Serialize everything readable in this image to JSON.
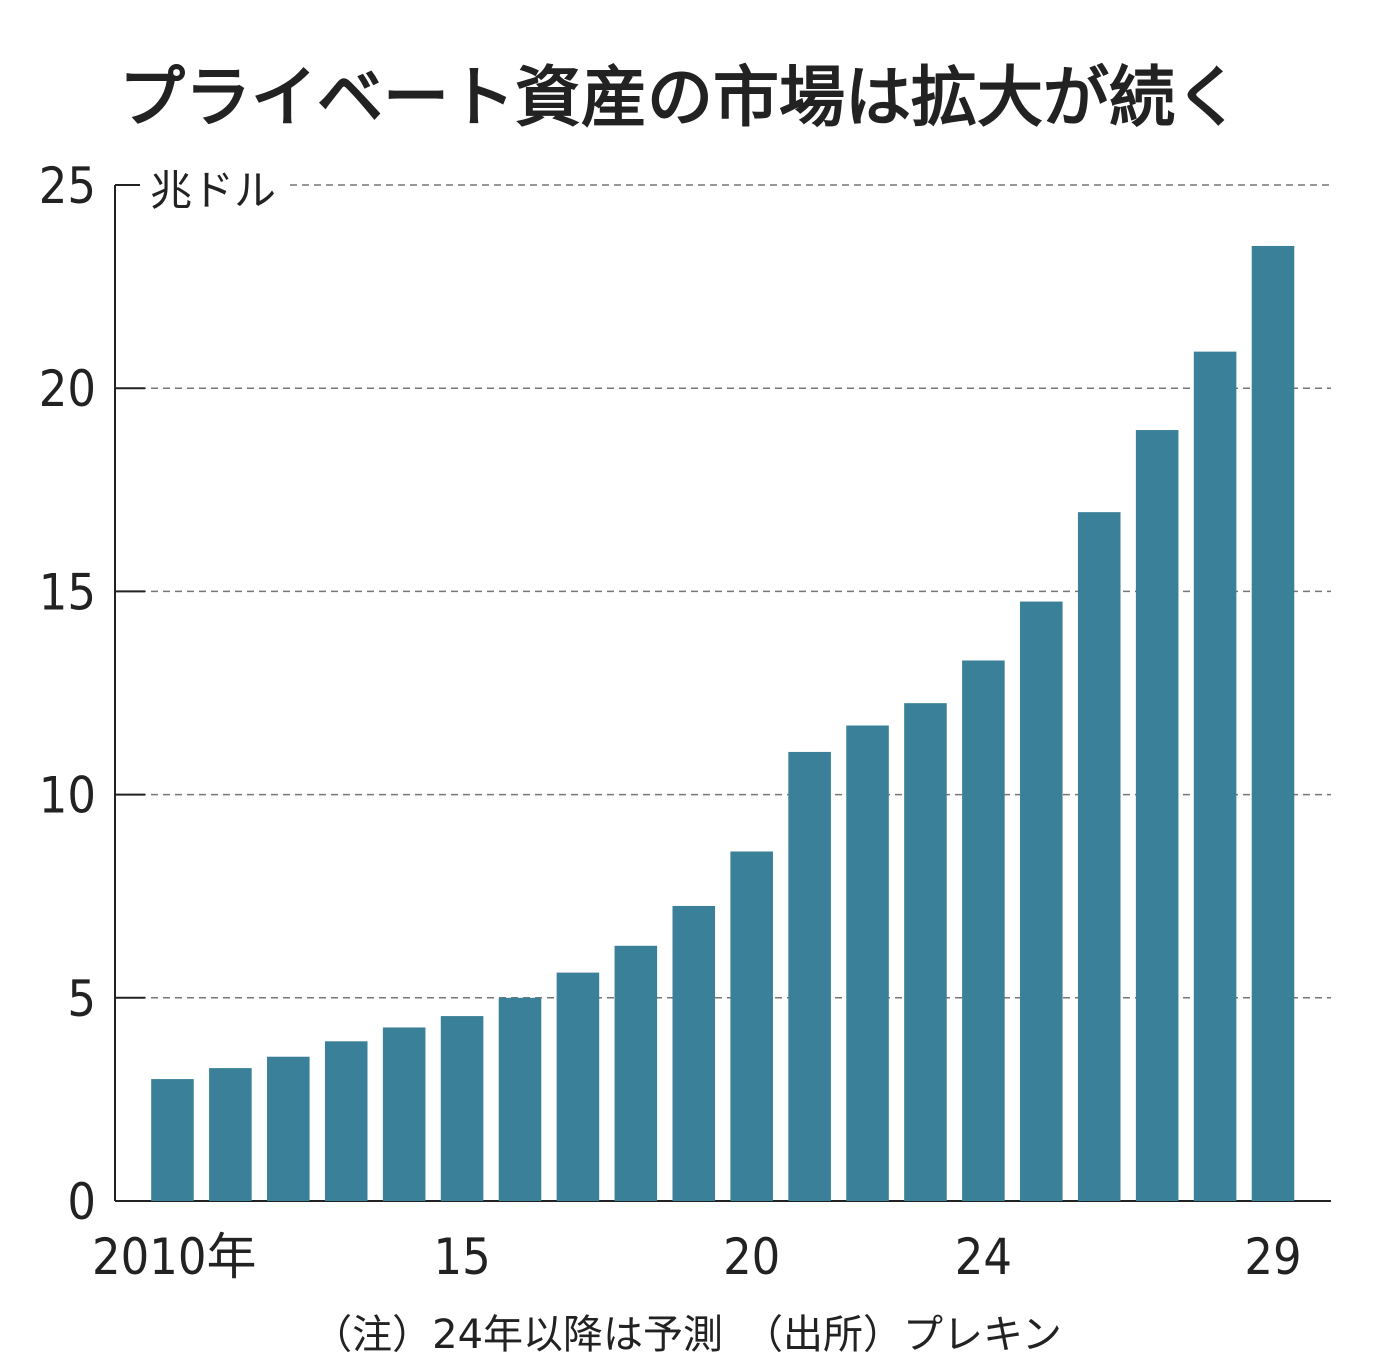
{
  "chart_data": {
    "type": "bar",
    "title": "プライベート資産の市場は拡大が続く",
    "unit_label": "兆ドル",
    "categories": [
      "2010",
      "2011",
      "2012",
      "2013",
      "2014",
      "2015",
      "2016",
      "2017",
      "2018",
      "2019",
      "2020",
      "2021",
      "2022",
      "2023",
      "2024",
      "2025",
      "2026",
      "2027",
      "2028",
      "2029"
    ],
    "x_tick_labels": [
      {
        "index": 0,
        "label": "2010年"
      },
      {
        "index": 5,
        "label": "15"
      },
      {
        "index": 10,
        "label": "20"
      },
      {
        "index": 14,
        "label": "24"
      },
      {
        "index": 19,
        "label": "29"
      }
    ],
    "values": [
      3.0,
      3.27,
      3.55,
      3.93,
      4.27,
      4.55,
      5.0,
      5.62,
      6.28,
      7.26,
      8.6,
      11.05,
      11.7,
      12.25,
      13.3,
      14.75,
      16.95,
      18.97,
      20.9,
      23.5
    ],
    "ylim": [
      0,
      25
    ],
    "y_ticks": [
      "0",
      "5",
      "10",
      "15",
      "20",
      "25"
    ],
    "grid": true,
    "colors": {
      "bar": "#3a8098"
    },
    "footnote": "（注）24年以降は予測　（出所）プレキン"
  }
}
